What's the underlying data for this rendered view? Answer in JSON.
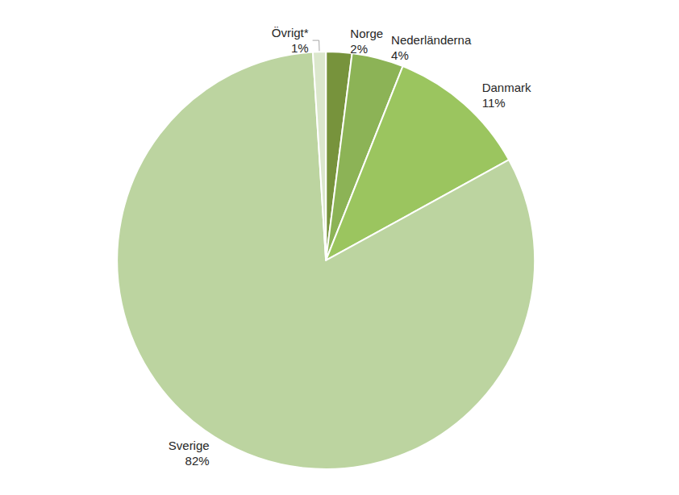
{
  "chart_data": {
    "type": "pie",
    "categories": [
      "Norge",
      "Nederländerna",
      "Danmark",
      "Sverige",
      "Övrigt*"
    ],
    "values": [
      2,
      4,
      11,
      82,
      1
    ],
    "value_labels": [
      "2%",
      "4%",
      "11%",
      "82%",
      "1%"
    ],
    "colors": [
      "#77933c",
      "#8cb356",
      "#9bc55f",
      "#bcd4a0",
      "#dbe7cc"
    ],
    "data_labels": true
  }
}
